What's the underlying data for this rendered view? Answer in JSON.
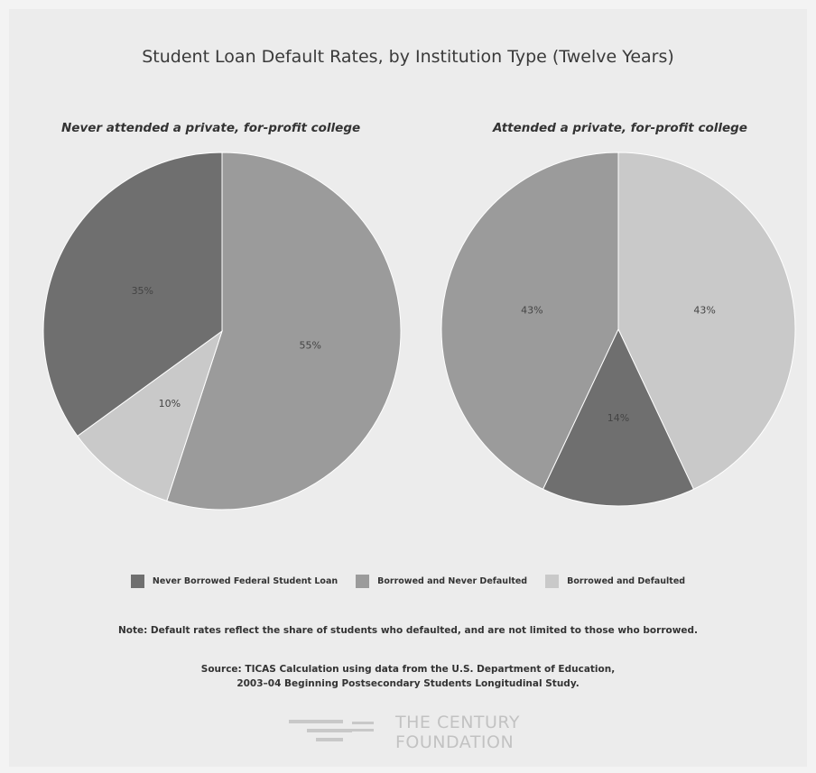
{
  "chart_data": {
    "type": "pie",
    "title": "Student Loan Default Rates, by Institution Type (Twelve Years)",
    "legend": {
      "placement": "bottom",
      "entries": [
        {
          "label": "Never Borrowed Federal Student Loan",
          "color": "#6f6f6f"
        },
        {
          "label": "Borrowed and Never Defaulted",
          "color": "#9b9b9b"
        },
        {
          "label": "Borrowed and Defaulted",
          "color": "#c9c9c9"
        }
      ]
    },
    "charts": [
      {
        "subtitle": "Never attended a private, for-profit college",
        "slices": [
          {
            "category": "Borrowed and Never Defaulted",
            "value": 55,
            "label": "55%",
            "color": "#9b9b9b"
          },
          {
            "category": "Borrowed and Defaulted",
            "value": 10,
            "label": "10%",
            "color": "#c9c9c9"
          },
          {
            "category": "Never Borrowed Federal Student Loan",
            "value": 35,
            "label": "35%",
            "color": "#6f6f6f"
          }
        ]
      },
      {
        "subtitle": "Attended a private, for-profit college",
        "slices": [
          {
            "category": "Borrowed and Defaulted",
            "value": 43,
            "label": "43%",
            "color": "#c9c9c9"
          },
          {
            "category": "Never Borrowed Federal Student Loan",
            "value": 14,
            "label": "14%",
            "color": "#6f6f6f"
          },
          {
            "category": "Borrowed and Never Defaulted",
            "value": 43,
            "label": "43%",
            "color": "#9b9b9b"
          }
        ]
      }
    ]
  },
  "note": "Note: Default rates reflect the share of students who defaulted, and are not limited to those who borrowed.",
  "source_line1": "Source: TICAS Calculation using data from the U.S. Department of Education,",
  "source_line2": "2003–04 Beginning Postsecondary Students Longitudinal Study.",
  "logo": {
    "line1": "THE CENTURY",
    "line2": "FOUNDATION"
  }
}
